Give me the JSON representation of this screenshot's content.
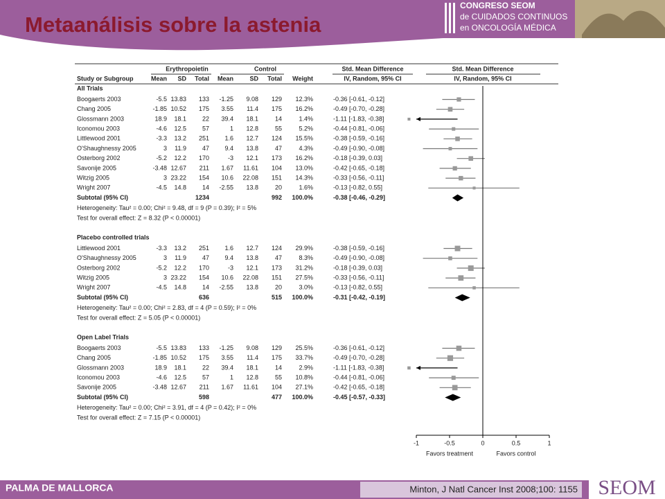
{
  "header": {
    "title": "Metaanálisis sobre la astenia",
    "logo_lines": [
      "CONGRESO SEOM",
      "de CUIDADOS CONTINUOS",
      "en ONCOLOGÍA MÉDICA"
    ]
  },
  "footer": {
    "left": "PALMA DE MALLORCA",
    "citation": "Minton, J Natl Cancer Inst 2008;100: 1155",
    "brand": "SEOM"
  },
  "chart_data": {
    "type": "forest",
    "group_headers": [
      "Erythropoietin",
      "Control",
      "Std. Mean Difference",
      "Std. Mean Difference"
    ],
    "columns": [
      "Study or Subgroup",
      "Mean",
      "SD",
      "Total",
      "Mean",
      "SD",
      "Total",
      "Weight",
      "IV, Random, 95% CI",
      "IV, Random, 95% CI"
    ],
    "xlim": [
      -1,
      1
    ],
    "xticks": [
      -1,
      -0.5,
      0,
      0.5,
      1
    ],
    "x_labels": [
      "Favors treatment",
      "Favors control"
    ],
    "sections": [
      {
        "name": "All Trials",
        "studies": [
          {
            "name": "Boogaerts 2003",
            "cells": [
              -5.5,
              13.83,
              133,
              -1.25,
              9.08,
              129
            ],
            "weight": 12.3,
            "weight_label": "12.3%",
            "ci": [
              -0.36,
              -0.61,
              -0.12
            ],
            "ci_label": "-0.36 [-0.61, -0.12]"
          },
          {
            "name": "Chang 2005",
            "cells": [
              -1.85,
              10.52,
              175,
              3.55,
              11.4,
              175
            ],
            "weight": 16.2,
            "weight_label": "16.2%",
            "ci": [
              -0.49,
              -0.7,
              -0.28
            ],
            "ci_label": "-0.49 [-0.70, -0.28]"
          },
          {
            "name": "Glossmann 2003",
            "cells": [
              18.9,
              18.1,
              22,
              39.4,
              18.1,
              14
            ],
            "weight": 1.4,
            "weight_label": "1.4%",
            "ci": [
              -1.11,
              -1.83,
              -0.38
            ],
            "ci_label": "-1.11 [-1.83, -0.38]"
          },
          {
            "name": "Iconomou 2003",
            "cells": [
              -4.6,
              12.5,
              57,
              1,
              12.8,
              55
            ],
            "weight": 5.2,
            "weight_label": "5.2%",
            "ci": [
              -0.44,
              -0.81,
              -0.06
            ],
            "ci_label": "-0.44 [-0.81, -0.06]"
          },
          {
            "name": "Littlewood 2001",
            "cells": [
              -3.3,
              13.2,
              251,
              1.6,
              12.7,
              124
            ],
            "weight": 15.5,
            "weight_label": "15.5%",
            "ci": [
              -0.38,
              -0.59,
              -0.16
            ],
            "ci_label": "-0.38 [-0.59, -0.16]"
          },
          {
            "name": "O'Shaughnessy 2005",
            "cells": [
              3,
              11.9,
              47,
              9.4,
              13.8,
              47
            ],
            "weight": 4.3,
            "weight_label": "4.3%",
            "ci": [
              -0.49,
              -0.9,
              -0.08
            ],
            "ci_label": "-0.49 [-0.90, -0.08]"
          },
          {
            "name": "Osterborg 2002",
            "cells": [
              -5.2,
              12.2,
              170,
              -3,
              12.1,
              173
            ],
            "weight": 16.2,
            "weight_label": "16.2%",
            "ci": [
              -0.18,
              -0.39,
              0.03
            ],
            "ci_label": "-0.18 [-0.39, 0.03]"
          },
          {
            "name": "Savonije 2005",
            "cells": [
              -3.48,
              12.67,
              211,
              1.67,
              11.61,
              104
            ],
            "weight": 13,
            "weight_label": "13.0%",
            "ci": [
              -0.42,
              -0.65,
              -0.18
            ],
            "ci_label": "-0.42 [-0.65, -0.18]"
          },
          {
            "name": "Witzig 2005",
            "cells": [
              3,
              23.22,
              154,
              10.6,
              22.08,
              151
            ],
            "weight": 14.3,
            "weight_label": "14.3%",
            "ci": [
              -0.33,
              -0.56,
              -0.11
            ],
            "ci_label": "-0.33 [-0.56, -0.11]"
          },
          {
            "name": "Wright 2007",
            "cells": [
              -4.5,
              14.8,
              14,
              -2.55,
              13.8,
              20
            ],
            "weight": 1.6,
            "weight_label": "1.6%",
            "ci": [
              -0.13,
              -0.82,
              0.55
            ],
            "ci_label": "-0.13 [-0.82, 0.55]"
          }
        ],
        "subtotal": {
          "name": "Subtotal (95% CI)",
          "totals": [
            1234,
            992
          ],
          "weight": 100,
          "weight_label": "100.0%",
          "ci": [
            -0.38,
            -0.46,
            -0.29
          ],
          "ci_label": "-0.38 [-0.46, -0.29]"
        },
        "heterogeneity": "Heterogeneity: Tau² = 0.00; Chi² = 9.48, df = 9 (P = 0.39); I² = 5%",
        "overall": "Test for overall effect: Z = 8.32 (P < 0.00001)"
      },
      {
        "name": "Placebo controlled trials",
        "studies": [
          {
            "name": "Littlewood 2001",
            "cells": [
              -3.3,
              13.2,
              251,
              1.6,
              12.7,
              124
            ],
            "weight": 29.9,
            "weight_label": "29.9%",
            "ci": [
              -0.38,
              -0.59,
              -0.16
            ],
            "ci_label": "-0.38 [-0.59, -0.16]"
          },
          {
            "name": "O'Shaughnessy 2005",
            "cells": [
              3,
              11.9,
              47,
              9.4,
              13.8,
              47
            ],
            "weight": 8.3,
            "weight_label": "8.3%",
            "ci": [
              -0.49,
              -0.9,
              -0.08
            ],
            "ci_label": "-0.49 [-0.90, -0.08]"
          },
          {
            "name": "Osterborg 2002",
            "cells": [
              -5.2,
              12.2,
              170,
              -3,
              12.1,
              173
            ],
            "weight": 31.2,
            "weight_label": "31.2%",
            "ci": [
              -0.18,
              -0.39,
              0.03
            ],
            "ci_label": "-0.18 [-0.39, 0.03]"
          },
          {
            "name": "Witzig 2005",
            "cells": [
              3,
              23.22,
              154,
              10.6,
              22.08,
              151
            ],
            "weight": 27.5,
            "weight_label": "27.5%",
            "ci": [
              -0.33,
              -0.56,
              -0.11
            ],
            "ci_label": "-0.33 [-0.56, -0.11]"
          },
          {
            "name": "Wright 2007",
            "cells": [
              -4.5,
              14.8,
              14,
              -2.55,
              13.8,
              20
            ],
            "weight": 3,
            "weight_label": "3.0%",
            "ci": [
              -0.13,
              -0.82,
              0.55
            ],
            "ci_label": "-0.13 [-0.82, 0.55]"
          }
        ],
        "subtotal": {
          "name": "Subtotal (95% CI)",
          "totals": [
            636,
            515
          ],
          "weight": 100,
          "weight_label": "100.0%",
          "ci": [
            -0.31,
            -0.42,
            -0.19
          ],
          "ci_label": "-0.31 [-0.42, -0.19]"
        },
        "heterogeneity": "Heterogeneity: Tau² = 0.00; Chi² = 2.83, df = 4 (P = 0.59); I² = 0%",
        "overall": "Test for overall effect: Z = 5.05 (P < 0.00001)"
      },
      {
        "name": "Open Label Trials",
        "studies": [
          {
            "name": "Boogaerts 2003",
            "cells": [
              -5.5,
              13.83,
              133,
              -1.25,
              9.08,
              129
            ],
            "weight": 25.5,
            "weight_label": "25.5%",
            "ci": [
              -0.36,
              -0.61,
              -0.12
            ],
            "ci_label": "-0.36 [-0.61, -0.12]"
          },
          {
            "name": "Chang 2005",
            "cells": [
              -1.85,
              10.52,
              175,
              3.55,
              11.4,
              175
            ],
            "weight": 33.7,
            "weight_label": "33.7%",
            "ci": [
              -0.49,
              -0.7,
              -0.28
            ],
            "ci_label": "-0.49 [-0.70, -0.28]"
          },
          {
            "name": "Glossmann 2003",
            "cells": [
              18.9,
              18.1,
              22,
              39.4,
              18.1,
              14
            ],
            "weight": 2.9,
            "weight_label": "2.9%",
            "ci": [
              -1.11,
              -1.83,
              -0.38
            ],
            "ci_label": "-1.11 [-1.83, -0.38]"
          },
          {
            "name": "Iconomou 2003",
            "cells": [
              -4.6,
              12.5,
              57,
              1,
              12.8,
              55
            ],
            "weight": 10.8,
            "weight_label": "10.8%",
            "ci": [
              -0.44,
              -0.81,
              -0.06
            ],
            "ci_label": "-0.44 [-0.81, -0.06]"
          },
          {
            "name": "Savonije 2005",
            "cells": [
              -3.48,
              12.67,
              211,
              1.67,
              11.61,
              104
            ],
            "weight": 27.1,
            "weight_label": "27.1%",
            "ci": [
              -0.42,
              -0.65,
              -0.18
            ],
            "ci_label": "-0.42 [-0.65, -0.18]"
          }
        ],
        "subtotal": {
          "name": "Subtotal (95% CI)",
          "totals": [
            598,
            477
          ],
          "weight": 100,
          "weight_label": "100.0%",
          "ci": [
            -0.45,
            -0.57,
            -0.33
          ],
          "ci_label": "-0.45 [-0.57, -0.33]"
        },
        "heterogeneity": "Heterogeneity: Tau² = 0.00; Chi² = 3.91, df = 4 (P = 0.42); I² = 0%",
        "overall": "Test for overall effect: Z = 7.15 (P < 0.00001)"
      }
    ]
  }
}
